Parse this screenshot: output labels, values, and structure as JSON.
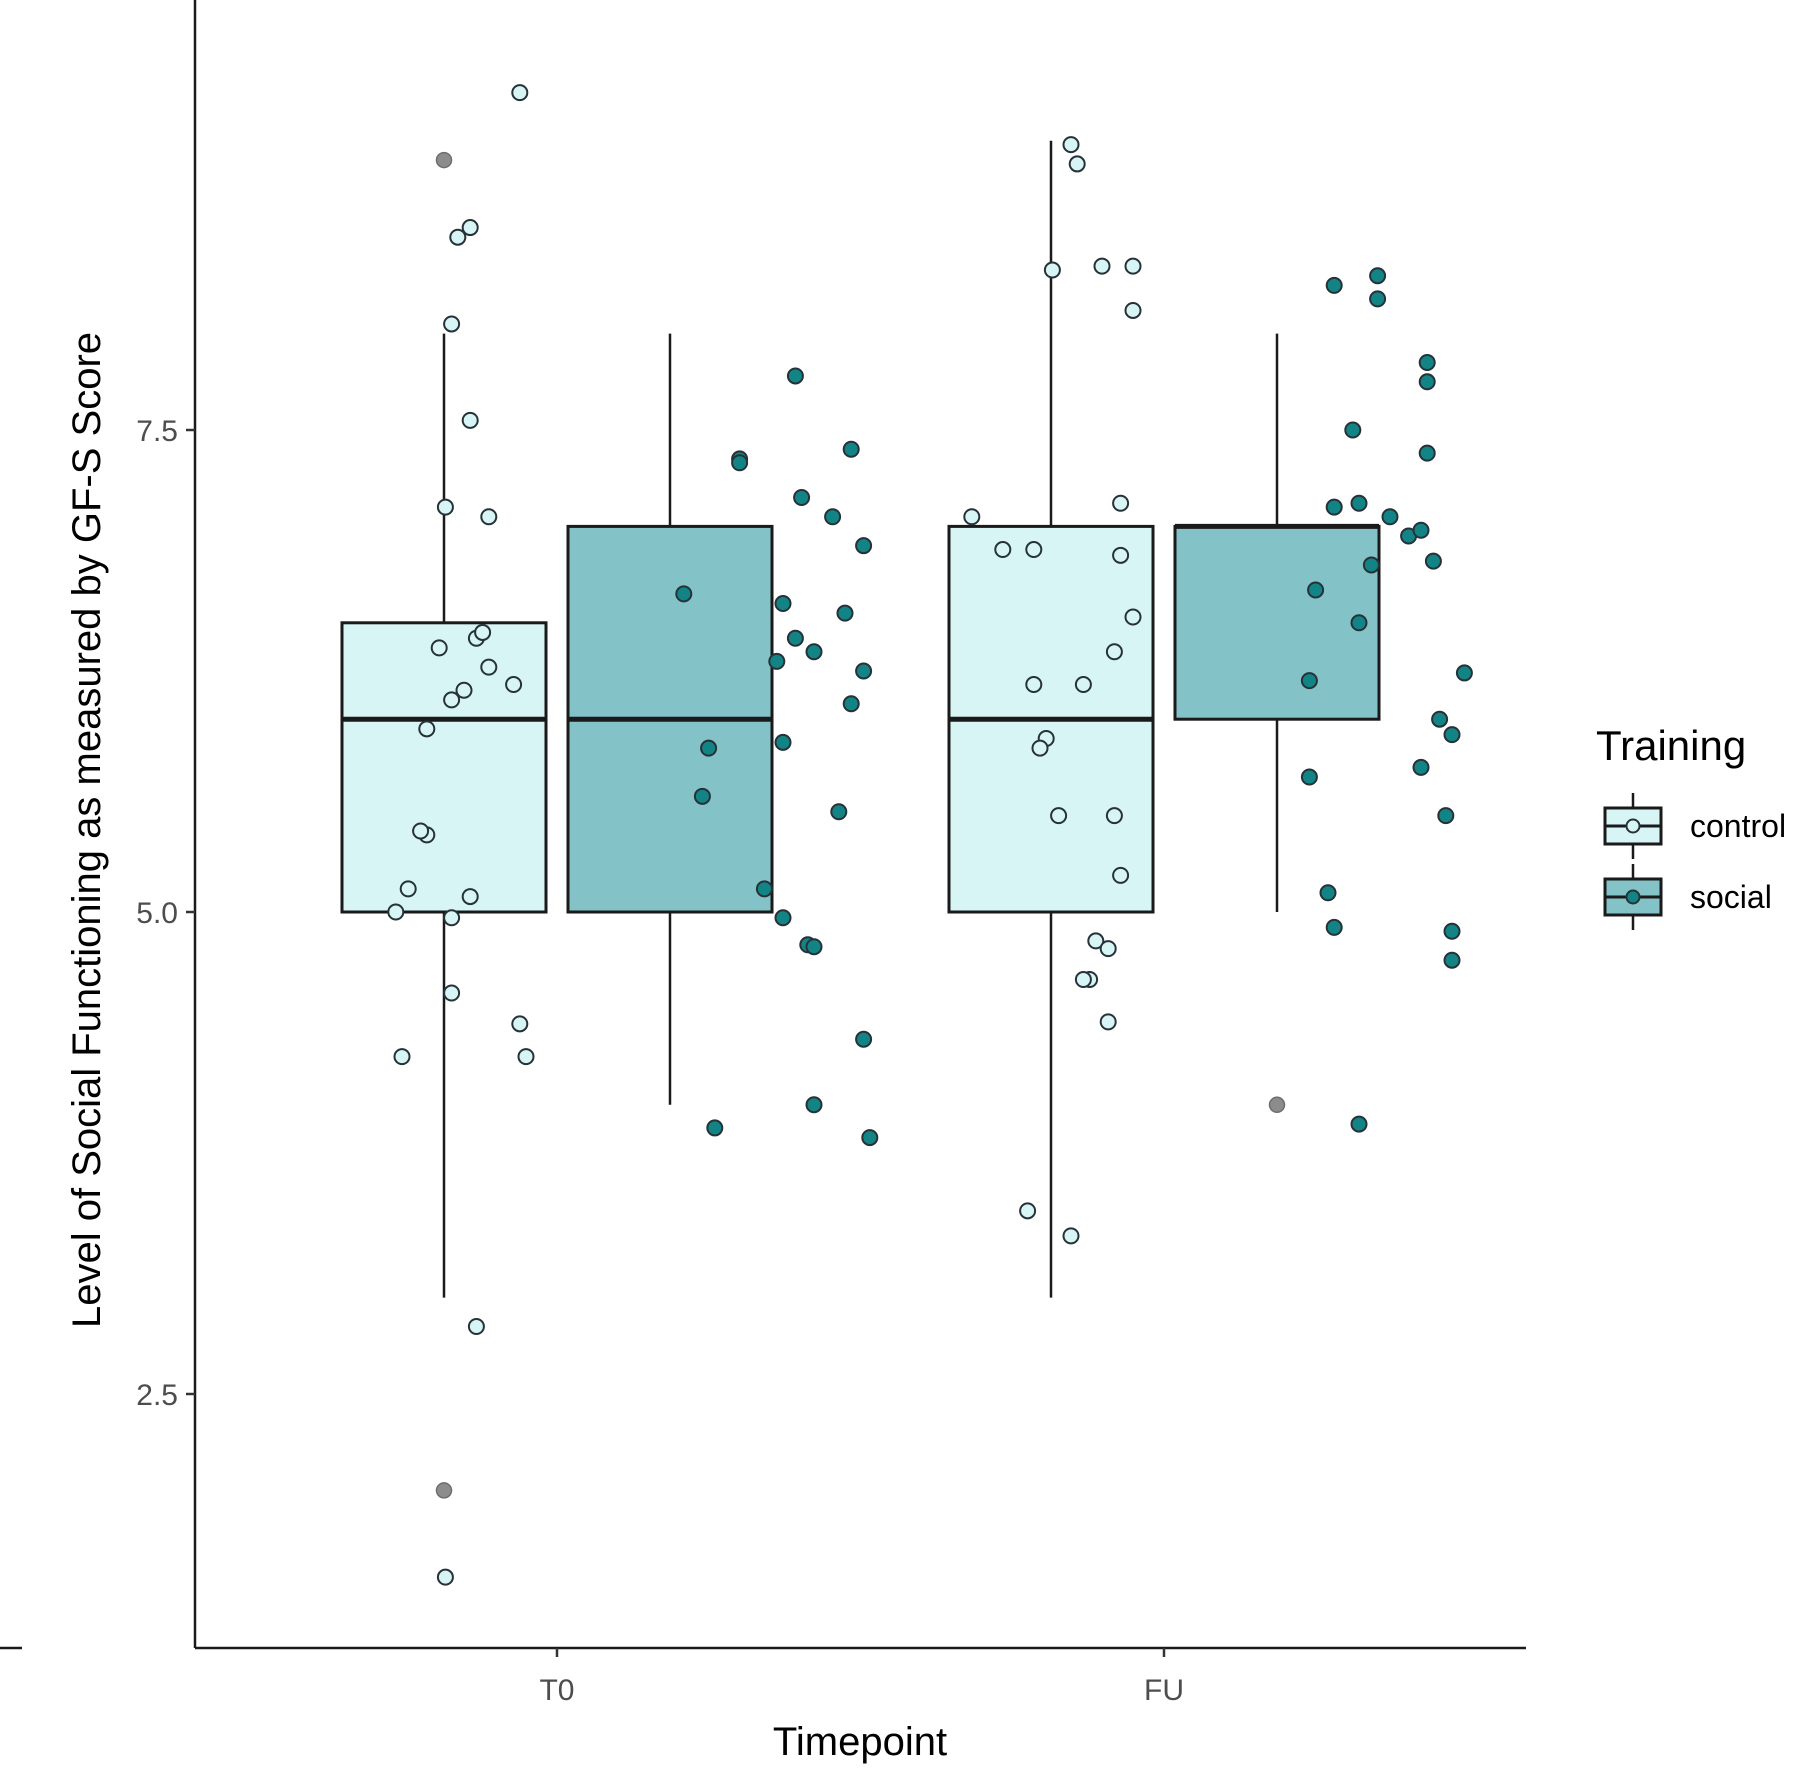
{
  "chart_data": {
    "type": "box",
    "xlabel": "Timepoint",
    "ylabel": "Level of Social Functioning as measured by GF-S Score",
    "categories": [
      "T0",
      "FU"
    ],
    "ylim": [
      1.3,
      9.6
    ],
    "yticks": [
      2.5,
      5.0,
      7.5
    ],
    "ytick_labels": [
      "2.5",
      "5.0",
      "7.5"
    ],
    "legend": {
      "title": "Training",
      "position": "right",
      "entries": [
        "control",
        "social"
      ]
    },
    "colors": {
      "control_fill": "#d8f5f5",
      "social_fill": "#83c3c7",
      "control_point": "#d8f5f5",
      "social_point": "#138486",
      "outlier": "#8c8c8c",
      "box_stroke": "#1a1a1a"
    },
    "series": [
      {
        "name": "control",
        "boxes": [
          {
            "category": "T0",
            "whisker_low": 3.0,
            "q1": 5.0,
            "median": 6.0,
            "q3": 6.5,
            "whisker_high": 8.0,
            "outliers": [
              8.9,
              2.0
            ]
          },
          {
            "category": "FU",
            "whisker_low": 3.0,
            "q1": 5.0,
            "median": 6.0,
            "q3": 7.0,
            "whisker_high": 9.0,
            "outliers": []
          }
        ],
        "points": [
          {
            "category": "T0",
            "offset": -0.18,
            "y": 1.55
          },
          {
            "category": "T0",
            "offset": -0.25,
            "y": 4.25
          },
          {
            "category": "T0",
            "offset": -0.26,
            "y": 5.0
          },
          {
            "category": "T0",
            "offset": -0.24,
            "y": 5.12
          },
          {
            "category": "T0",
            "offset": -0.21,
            "y": 5.4
          },
          {
            "category": "T0",
            "offset": -0.22,
            "y": 5.42
          },
          {
            "category": "T0",
            "offset": -0.21,
            "y": 5.95
          },
          {
            "category": "T0",
            "offset": -0.19,
            "y": 6.37
          },
          {
            "category": "T0",
            "offset": -0.18,
            "y": 7.1
          },
          {
            "category": "T0",
            "offset": -0.17,
            "y": 6.1
          },
          {
            "category": "T0",
            "offset": -0.15,
            "y": 6.15
          },
          {
            "category": "T0",
            "offset": -0.13,
            "y": 6.42
          },
          {
            "category": "T0",
            "offset": -0.12,
            "y": 6.45
          },
          {
            "category": "T0",
            "offset": -0.11,
            "y": 6.27
          },
          {
            "category": "T0",
            "offset": -0.07,
            "y": 6.18
          },
          {
            "category": "T0",
            "offset": -0.17,
            "y": 4.97
          },
          {
            "category": "T0",
            "offset": -0.17,
            "y": 4.58
          },
          {
            "category": "T0",
            "offset": -0.14,
            "y": 5.08
          },
          {
            "category": "T0",
            "offset": -0.06,
            "y": 4.42
          },
          {
            "category": "T0",
            "offset": -0.05,
            "y": 4.25
          },
          {
            "category": "T0",
            "offset": -0.11,
            "y": 7.05
          },
          {
            "category": "T0",
            "offset": -0.13,
            "y": 2.85
          },
          {
            "category": "T0",
            "offset": -0.14,
            "y": 7.55
          },
          {
            "category": "T0",
            "offset": -0.17,
            "y": 8.05
          },
          {
            "category": "T0",
            "offset": -0.16,
            "y": 8.5
          },
          {
            "category": "T0",
            "offset": -0.14,
            "y": 8.55
          },
          {
            "category": "T0",
            "offset": -0.06,
            "y": 9.25
          },
          {
            "category": "FU",
            "offset": -0.31,
            "y": 7.05
          },
          {
            "category": "FU",
            "offset": -0.26,
            "y": 6.88
          },
          {
            "category": "FU",
            "offset": -0.21,
            "y": 6.88
          },
          {
            "category": "FU",
            "offset": -0.21,
            "y": 6.18
          },
          {
            "category": "FU",
            "offset": -0.19,
            "y": 5.9
          },
          {
            "category": "FU",
            "offset": -0.2,
            "y": 5.85
          },
          {
            "category": "FU",
            "offset": -0.17,
            "y": 5.5
          },
          {
            "category": "FU",
            "offset": -0.13,
            "y": 6.18
          },
          {
            "category": "FU",
            "offset": -0.22,
            "y": 3.45
          },
          {
            "category": "FU",
            "offset": -0.15,
            "y": 3.32
          },
          {
            "category": "FU",
            "offset": -0.12,
            "y": 4.65
          },
          {
            "category": "FU",
            "offset": -0.13,
            "y": 4.65
          },
          {
            "category": "FU",
            "offset": -0.11,
            "y": 4.85
          },
          {
            "category": "FU",
            "offset": -0.09,
            "y": 4.81
          },
          {
            "category": "FU",
            "offset": -0.09,
            "y": 4.43
          },
          {
            "category": "FU",
            "offset": -0.08,
            "y": 6.35
          },
          {
            "category": "FU",
            "offset": -0.08,
            "y": 5.5
          },
          {
            "category": "FU",
            "offset": -0.07,
            "y": 5.19
          },
          {
            "category": "FU",
            "offset": -0.07,
            "y": 6.85
          },
          {
            "category": "FU",
            "offset": -0.07,
            "y": 7.12
          },
          {
            "category": "FU",
            "offset": -0.05,
            "y": 6.53
          },
          {
            "category": "FU",
            "offset": -0.18,
            "y": 8.33
          },
          {
            "category": "FU",
            "offset": -0.15,
            "y": 8.98
          },
          {
            "category": "FU",
            "offset": -0.14,
            "y": 8.88
          },
          {
            "category": "FU",
            "offset": -0.1,
            "y": 8.35
          },
          {
            "category": "FU",
            "offset": -0.05,
            "y": 8.35
          },
          {
            "category": "FU",
            "offset": -0.05,
            "y": 8.12
          }
        ]
      },
      {
        "name": "social",
        "boxes": [
          {
            "category": "T0",
            "whisker_low": 4.0,
            "q1": 5.0,
            "median": 6.0,
            "q3": 7.0,
            "whisker_high": 8.0,
            "outliers": []
          },
          {
            "category": "FU",
            "whisker_low": 5.0,
            "q1": 6.0,
            "median": 7.0,
            "q3": 7.0,
            "whisker_high": 8.0,
            "outliers": [
              4.0
            ]
          }
        ],
        "points": [
          {
            "category": "T0",
            "offset": -0.16,
            "y": 6.65
          },
          {
            "category": "T0",
            "offset": -0.12,
            "y": 5.85
          },
          {
            "category": "T0",
            "offset": -0.13,
            "y": 5.6
          },
          {
            "category": "T0",
            "offset": -0.11,
            "y": 3.88
          },
          {
            "category": "T0",
            "offset": -0.07,
            "y": 7.35
          },
          {
            "category": "T0",
            "offset": -0.07,
            "y": 7.33
          },
          {
            "category": "T0",
            "offset": -0.03,
            "y": 5.12
          },
          {
            "category": "T0",
            "offset": -0.01,
            "y": 6.3
          },
          {
            "category": "T0",
            "offset": 0.0,
            "y": 5.88
          },
          {
            "category": "T0",
            "offset": 0.0,
            "y": 6.6
          },
          {
            "category": "T0",
            "offset": 0.0,
            "y": 4.97
          },
          {
            "category": "T0",
            "offset": 0.02,
            "y": 7.78
          },
          {
            "category": "T0",
            "offset": 0.02,
            "y": 6.42
          },
          {
            "category": "T0",
            "offset": 0.03,
            "y": 7.15
          },
          {
            "category": "T0",
            "offset": 0.04,
            "y": 4.83
          },
          {
            "category": "T0",
            "offset": 0.05,
            "y": 4.82
          },
          {
            "category": "T0",
            "offset": 0.05,
            "y": 6.35
          },
          {
            "category": "T0",
            "offset": 0.05,
            "y": 4.0
          },
          {
            "category": "T0",
            "offset": 0.08,
            "y": 7.05
          },
          {
            "category": "T0",
            "offset": 0.09,
            "y": 5.52
          },
          {
            "category": "T0",
            "offset": 0.1,
            "y": 6.55
          },
          {
            "category": "T0",
            "offset": 0.11,
            "y": 6.08
          },
          {
            "category": "T0",
            "offset": 0.11,
            "y": 7.4
          },
          {
            "category": "T0",
            "offset": 0.13,
            "y": 6.25
          },
          {
            "category": "T0",
            "offset": 0.13,
            "y": 6.9
          },
          {
            "category": "T0",
            "offset": 0.13,
            "y": 4.34
          },
          {
            "category": "T0",
            "offset": 0.14,
            "y": 3.83
          },
          {
            "category": "FU",
            "offset": -0.12,
            "y": 6.67
          },
          {
            "category": "FU",
            "offset": -0.13,
            "y": 6.2
          },
          {
            "category": "FU",
            "offset": -0.13,
            "y": 5.7
          },
          {
            "category": "FU",
            "offset": -0.1,
            "y": 5.1
          },
          {
            "category": "FU",
            "offset": -0.09,
            "y": 4.92
          },
          {
            "category": "FU",
            "offset": -0.09,
            "y": 8.25
          },
          {
            "category": "FU",
            "offset": -0.09,
            "y": 7.1
          },
          {
            "category": "FU",
            "offset": -0.05,
            "y": 7.12
          },
          {
            "category": "FU",
            "offset": -0.05,
            "y": 6.5
          },
          {
            "category": "FU",
            "offset": -0.06,
            "y": 7.5
          },
          {
            "category": "FU",
            "offset": -0.05,
            "y": 3.9
          },
          {
            "category": "FU",
            "offset": -0.03,
            "y": 6.8
          },
          {
            "category": "FU",
            "offset": -0.02,
            "y": 8.3
          },
          {
            "category": "FU",
            "offset": -0.02,
            "y": 8.18
          },
          {
            "category": "FU",
            "offset": 0.0,
            "y": 7.05
          },
          {
            "category": "FU",
            "offset": 0.03,
            "y": 6.95
          },
          {
            "category": "FU",
            "offset": 0.05,
            "y": 5.75
          },
          {
            "category": "FU",
            "offset": 0.05,
            "y": 6.98
          },
          {
            "category": "FU",
            "offset": 0.06,
            "y": 7.85
          },
          {
            "category": "FU",
            "offset": 0.06,
            "y": 7.75
          },
          {
            "category": "FU",
            "offset": 0.06,
            "y": 7.38
          },
          {
            "category": "FU",
            "offset": 0.07,
            "y": 6.82
          },
          {
            "category": "FU",
            "offset": 0.08,
            "y": 6.0
          },
          {
            "category": "FU",
            "offset": 0.09,
            "y": 5.5
          },
          {
            "category": "FU",
            "offset": 0.1,
            "y": 4.9
          },
          {
            "category": "FU",
            "offset": 0.1,
            "y": 5.92
          },
          {
            "category": "FU",
            "offset": 0.1,
            "y": 4.75
          },
          {
            "category": "FU",
            "offset": 0.12,
            "y": 6.24
          }
        ]
      }
    ]
  }
}
